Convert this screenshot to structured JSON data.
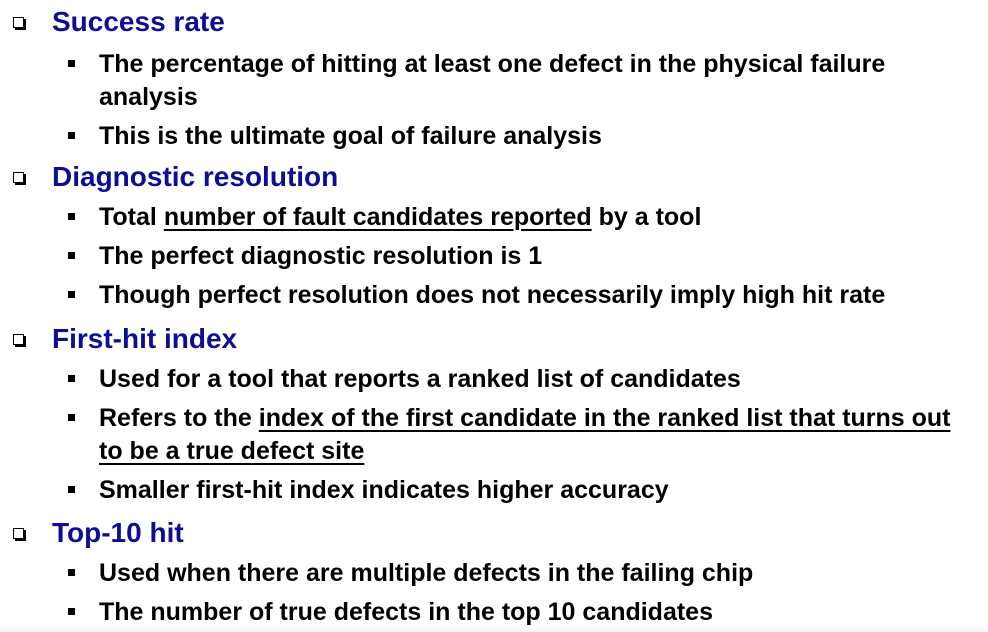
{
  "colors": {
    "heading": "#0d0d96",
    "body_text": "#000000",
    "background": "#ffffff"
  },
  "icons": {
    "section_bullet": "hollow-square-bullet-icon",
    "item_bullet": "filled-square-bullet-icon"
  },
  "sections": [
    {
      "title": "Success rate",
      "items": [
        {
          "text": "The percentage of hitting at least one defect in the physical failure analysis"
        },
        {
          "text": "This is the ultimate goal of failure analysis"
        }
      ]
    },
    {
      "title": "Diagnostic resolution",
      "items": [
        {
          "pre": "Total ",
          "underlined": "number of fault candidates reported",
          "post": " by a tool"
        },
        {
          "text": "The perfect diagnostic resolution is 1"
        },
        {
          "text": "Though perfect resolution does not necessarily imply high hit rate"
        }
      ]
    },
    {
      "title": "First-hit index",
      "items": [
        {
          "text": "Used for a tool that reports a ranked list of candidates"
        },
        {
          "pre": "Refers to the ",
          "underlined": "index of the first candidate in the ranked list that turns out to be a true defect site",
          "post": ""
        },
        {
          "text": "Smaller first-hit index indicates higher accuracy"
        }
      ]
    },
    {
      "title": "Top-10 hit",
      "items": [
        {
          "text": "Used when there are multiple defects in the failing chip"
        },
        {
          "text": "The number of true defects in the top 10 candidates"
        }
      ]
    }
  ]
}
